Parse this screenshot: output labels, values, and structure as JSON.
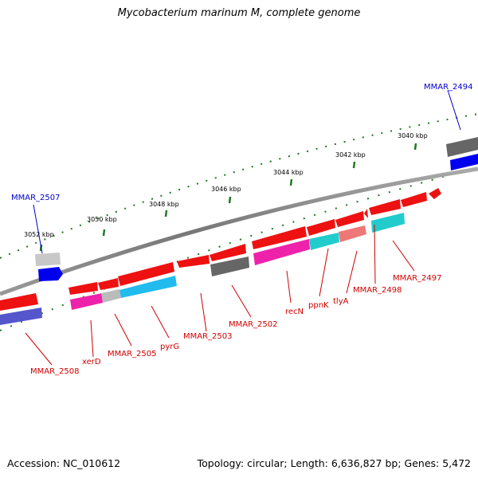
{
  "title": "Mycobacterium marinum M, complete genome",
  "footer": {
    "accession": "Accession: NC_010612",
    "topology": "Topology: circular; Length: 6,636,827 bp; Genes: 5,472"
  },
  "colors": {
    "backbone": "#888888",
    "ticks": "#1e7a1e",
    "label_forward": "#0000cc",
    "label_reverse": "#d00000"
  },
  "tick_labels": [
    {
      "id": "t3040",
      "text": "3040 kbp"
    },
    {
      "id": "t3042",
      "text": "3042 kbp"
    },
    {
      "id": "t3044",
      "text": "3044 kbp"
    },
    {
      "id": "t3046",
      "text": "3046 kbp"
    },
    {
      "id": "t3048",
      "text": "3048 kbp"
    },
    {
      "id": "t3050",
      "text": "3050 kbp"
    },
    {
      "id": "t3052",
      "text": "3052 kbp"
    }
  ],
  "gene_labels": [
    {
      "id": "g2494",
      "text": "MMAR_2494",
      "strand": "forward"
    },
    {
      "id": "g2507",
      "text": "MMAR_2507",
      "strand": "forward"
    },
    {
      "id": "g2497",
      "text": "MMAR_2497",
      "strand": "reverse"
    },
    {
      "id": "g2498",
      "text": "MMAR_2498",
      "strand": "reverse"
    },
    {
      "id": "gtlyA",
      "text": "tlyA",
      "strand": "reverse"
    },
    {
      "id": "gppnK",
      "text": "ppnK",
      "strand": "reverse"
    },
    {
      "id": "grecN",
      "text": "recN",
      "strand": "reverse"
    },
    {
      "id": "g2502",
      "text": "MMAR_2502",
      "strand": "reverse"
    },
    {
      "id": "g2503",
      "text": "MMAR_2503",
      "strand": "reverse"
    },
    {
      "id": "gpyrG",
      "text": "pyrG",
      "strand": "reverse"
    },
    {
      "id": "g2505",
      "text": "MMAR_2505",
      "strand": "reverse"
    },
    {
      "id": "gxerD",
      "text": "xerD",
      "strand": "reverse"
    },
    {
      "id": "g2508",
      "text": "MMAR_2508",
      "strand": "reverse"
    }
  ]
}
